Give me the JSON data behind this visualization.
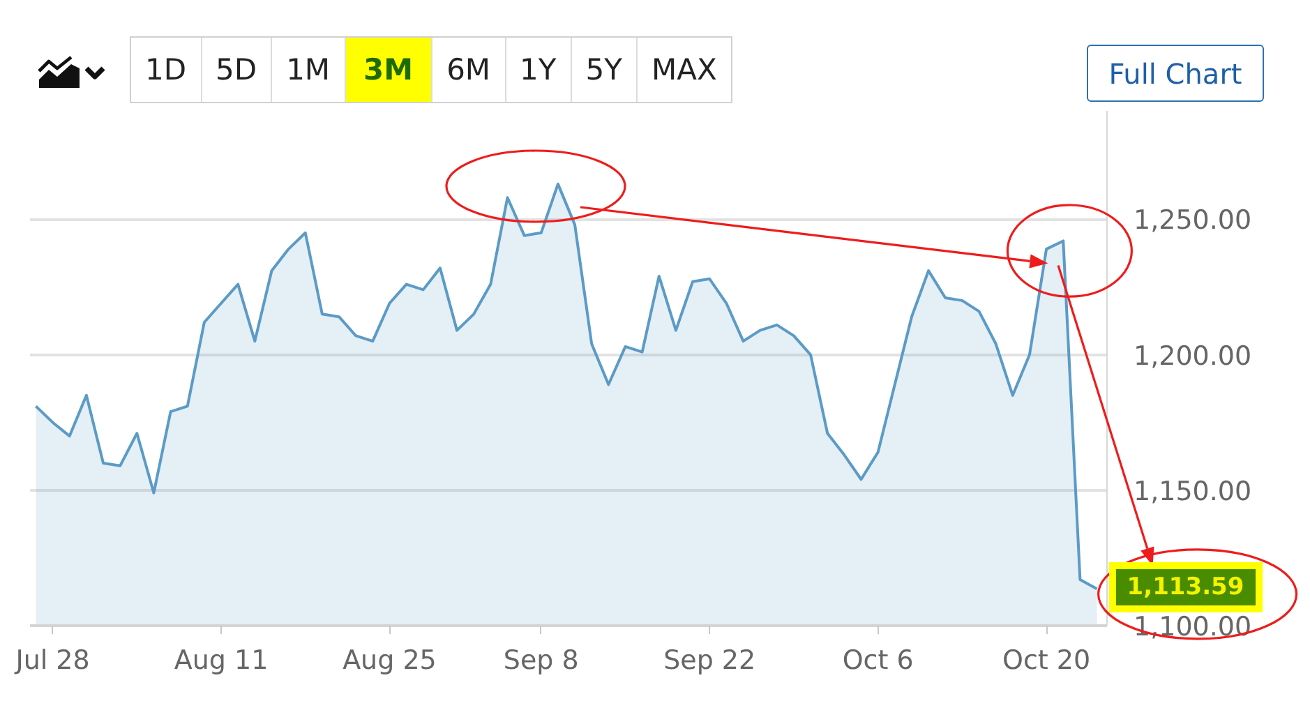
{
  "chart_data": {
    "type": "area",
    "categories": [
      null,
      "Jul 28",
      null,
      null,
      null,
      null,
      null,
      null,
      null,
      null,
      null,
      "Aug 11",
      null,
      null,
      null,
      null,
      null,
      null,
      null,
      null,
      null,
      "Aug 25",
      null,
      null,
      null,
      null,
      null,
      null,
      null,
      null,
      "Sep 8",
      null,
      null,
      null,
      null,
      null,
      null,
      null,
      null,
      null,
      "Sep 22",
      null,
      null,
      null,
      null,
      null,
      null,
      null,
      null,
      null,
      "Oct 6",
      null,
      null,
      null,
      null,
      null,
      null,
      null,
      null,
      null,
      "Oct 20",
      null,
      null,
      null
    ],
    "series": [
      {
        "color": "#5b9bc6",
        "values": [
          1181,
          1175,
          1170,
          1185,
          1160,
          1159,
          1171,
          1149,
          1179,
          1181,
          1212,
          1219,
          1226,
          1205,
          1231,
          1239,
          1245,
          1215,
          1214,
          1207,
          1205,
          1219,
          1226,
          1224,
          1232,
          1209,
          1215,
          1226,
          1258,
          1244,
          1245,
          1263,
          1248,
          1204,
          1189,
          1203,
          1201,
          1229,
          1209,
          1227,
          1228,
          1219,
          1205,
          1209,
          1211,
          1207,
          1200,
          1171,
          1163,
          1154,
          1164,
          1189,
          1214,
          1231,
          1221,
          1220,
          1216,
          1204,
          1185,
          1200,
          1239,
          1242,
          1117,
          1113.59
        ],
        "value_labels": [
          null,
          null,
          null,
          null,
          null,
          null,
          null,
          null,
          null,
          null,
          null,
          null,
          null,
          null,
          null,
          null,
          null,
          null,
          null,
          null,
          null,
          null,
          null,
          null,
          null,
          null,
          null,
          null,
          null,
          null,
          null,
          null,
          null,
          null,
          null,
          null,
          null,
          null,
          null,
          null,
          null,
          null,
          null,
          null,
          null,
          null,
          null,
          null,
          null,
          null,
          null,
          null,
          null,
          null,
          null,
          null,
          null,
          null,
          null,
          null,
          null,
          null,
          null,
          "1,113.59"
        ]
      }
    ],
    "ylim": [
      1100,
      1290
    ],
    "yticks": [
      {
        "value": 1100,
        "label": "1,100.00"
      },
      {
        "value": 1150,
        "label": "1,150.00"
      },
      {
        "value": 1200,
        "label": "1,200.00"
      },
      {
        "value": 1250,
        "label": "1,250.00"
      }
    ],
    "grid": "y",
    "annotations": [
      "1D",
      "5D",
      "1M",
      "3M",
      "6M",
      "1Y",
      "5Y",
      "MAX",
      "Full Chart"
    ]
  }
}
